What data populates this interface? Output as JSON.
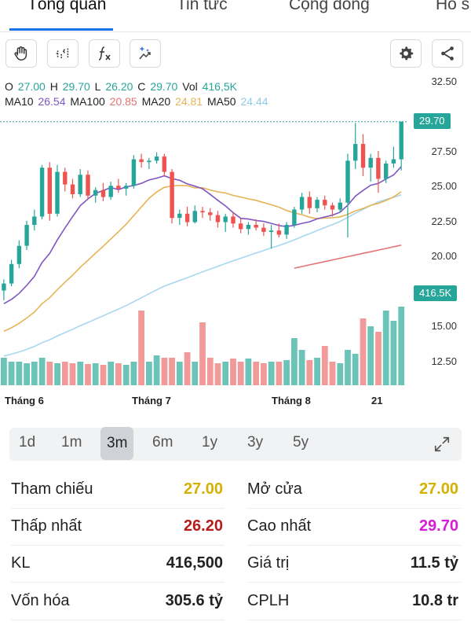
{
  "tabs": [
    {
      "label": "Tổng quan",
      "active": true
    },
    {
      "label": "Tin tức"
    },
    {
      "label": "Cộng đồng"
    },
    {
      "label": "Hồ s"
    }
  ],
  "toolbar": {
    "tools": [
      "hand-icon",
      "indicator-icon",
      "function-icon",
      "magic-icon"
    ],
    "right": [
      "gear-icon",
      "share-icon"
    ]
  },
  "ohlc": {
    "o_label": "O",
    "o": "27.00",
    "h_label": "H",
    "h": "29.70",
    "l_label": "L",
    "l": "26.20",
    "c_label": "C",
    "c": "29.70",
    "vol_label": "Vol",
    "vol": "416,5K"
  },
  "ma": {
    "ma10_label": "MA10",
    "ma10": "26.54",
    "ma100_label": "MA100",
    "ma100": "20.85",
    "ma20_label": "MA20",
    "ma20": "24.81",
    "ma50_label": "MA50",
    "ma50": "24.44"
  },
  "colors": {
    "up": "#26a69a",
    "down": "#ef5350",
    "ma10": "#7e57c2",
    "ma100": "#e57373",
    "ma20": "#e6b455",
    "ma50": "#a7d8f0",
    "vol_up": "#6cc4b8",
    "vol_down": "#f29a9a"
  },
  "price_axis": [
    "32.50",
    "27.50",
    "25.00",
    "22.50",
    "20.00",
    "15.00",
    "12.50"
  ],
  "last_price_tag": "29.70",
  "volume_tag": "416.5K",
  "x_labels": [
    "Tháng 6",
    "Tháng 7",
    "Tháng 8",
    "21"
  ],
  "ranges": [
    "1d",
    "1m",
    "3m",
    "6m",
    "1y",
    "3y",
    "5y"
  ],
  "active_range": "3m",
  "expand_icon": "expand-icon",
  "stats": {
    "ref_label": "Tham chiếu",
    "ref": "27.00",
    "open_label": "Mở cửa",
    "open": "27.00",
    "low_label": "Thấp nhất",
    "low": "26.20",
    "high_label": "Cao nhất",
    "high": "29.70",
    "kl_label": "KL",
    "kl": "416,500",
    "value_label": "Giá trị",
    "value": "11.5 tỷ",
    "cap_label": "Vốn hóa",
    "cap": "305.6 tỷ",
    "shares_label": "CPLH",
    "shares": "10.8 tr"
  },
  "stat_colors": {
    "ref": "#d4b000",
    "open": "#d4b000",
    "low": "#b71c1c",
    "high": "#d81bd8"
  },
  "chart_data": {
    "type": "candlestick",
    "candles_ohlc": [
      [
        17.6,
        18.4,
        16.9,
        18.1
      ],
      [
        18.1,
        19.8,
        17.9,
        19.5
      ],
      [
        19.5,
        21.2,
        19.2,
        20.8
      ],
      [
        20.8,
        22.6,
        20.5,
        22.3
      ],
      [
        22.3,
        23.4,
        21.9,
        22.9
      ],
      [
        22.9,
        26.6,
        22.7,
        26.4
      ],
      [
        26.4,
        26.8,
        22.6,
        23.1
      ],
      [
        23.1,
        26.6,
        22.9,
        26.1
      ],
      [
        26.1,
        26.4,
        24.7,
        25.2
      ],
      [
        25.2,
        25.6,
        24.2,
        24.5
      ],
      [
        24.5,
        26.3,
        24.3,
        25.9
      ],
      [
        25.9,
        26.2,
        24.1,
        24.4
      ],
      [
        24.4,
        25.0,
        23.9,
        24.8
      ],
      [
        24.8,
        25.3,
        24.0,
        24.3
      ],
      [
        24.3,
        25.4,
        24.1,
        25.1
      ],
      [
        25.1,
        25.6,
        24.6,
        24.9
      ],
      [
        24.9,
        25.3,
        24.4,
        25.1
      ],
      [
        25.1,
        27.3,
        24.9,
        27.0
      ],
      [
        27.0,
        27.4,
        26.4,
        26.8
      ],
      [
        26.8,
        27.1,
        26.3,
        26.9
      ],
      [
        26.9,
        27.5,
        26.7,
        27.2
      ],
      [
        27.2,
        27.4,
        25.8,
        26.1
      ],
      [
        26.1,
        26.3,
        22.4,
        22.8
      ],
      [
        22.8,
        23.4,
        22.3,
        23.1
      ],
      [
        23.1,
        23.6,
        22.2,
        22.5
      ],
      [
        22.5,
        23.7,
        22.4,
        23.3
      ],
      [
        23.3,
        23.6,
        22.8,
        23.2
      ],
      [
        23.2,
        23.5,
        22.6,
        23.0
      ],
      [
        23.0,
        23.3,
        22.1,
        22.5
      ],
      [
        22.5,
        23.1,
        21.8,
        22.9
      ],
      [
        22.9,
        23.2,
        22.1,
        22.4
      ],
      [
        22.4,
        22.8,
        21.7,
        22.0
      ],
      [
        22.0,
        22.5,
        21.6,
        22.3
      ],
      [
        22.3,
        22.7,
        21.9,
        22.1
      ],
      [
        22.1,
        22.4,
        21.5,
        21.8
      ],
      [
        21.8,
        22.3,
        20.6,
        21.9
      ],
      [
        21.9,
        22.4,
        21.4,
        21.6
      ],
      [
        21.6,
        22.5,
        21.3,
        22.3
      ],
      [
        22.3,
        23.6,
        22.1,
        23.4
      ],
      [
        23.4,
        24.6,
        23.1,
        24.3
      ],
      [
        24.3,
        24.7,
        23.1,
        23.5
      ],
      [
        23.5,
        24.3,
        23.2,
        24.1
      ],
      [
        24.1,
        24.4,
        23.4,
        23.7
      ],
      [
        23.7,
        23.9,
        22.9,
        23.4
      ],
      [
        23.4,
        24.2,
        23.2,
        23.9
      ],
      [
        23.9,
        27.4,
        21.4,
        26.9
      ],
      [
        26.9,
        29.6,
        26.3,
        28.1
      ],
      [
        28.1,
        28.8,
        25.8,
        26.4
      ],
      [
        26.4,
        27.4,
        25.4,
        27.1
      ],
      [
        27.1,
        27.6,
        24.6,
        25.6
      ],
      [
        25.6,
        26.9,
        25.3,
        26.7
      ],
      [
        26.7,
        27.9,
        26.4,
        27.0
      ],
      [
        27.0,
        29.7,
        26.2,
        29.7
      ]
    ],
    "volume_relative": [
      0.35,
      0.3,
      0.3,
      0.28,
      0.3,
      0.35,
      0.3,
      0.28,
      0.3,
      0.28,
      0.3,
      0.27,
      0.28,
      0.26,
      0.3,
      0.28,
      0.26,
      0.3,
      0.95,
      0.3,
      0.38,
      0.35,
      0.35,
      0.3,
      0.42,
      0.3,
      0.8,
      0.35,
      0.28,
      0.3,
      0.34,
      0.3,
      0.34,
      0.3,
      0.28,
      0.3,
      0.3,
      0.32,
      0.6,
      0.45,
      0.32,
      0.35,
      0.5,
      0.3,
      0.28,
      0.45,
      0.4,
      0.85,
      0.75,
      0.68,
      0.95,
      0.82,
      1.0
    ],
    "series": [
      {
        "name": "MA10"
      },
      {
        "name": "MA20"
      },
      {
        "name": "MA50"
      },
      {
        "name": "MA100"
      }
    ],
    "ylim": [
      10,
      34
    ],
    "title": "",
    "xlabel": "",
    "ylabel": ""
  }
}
